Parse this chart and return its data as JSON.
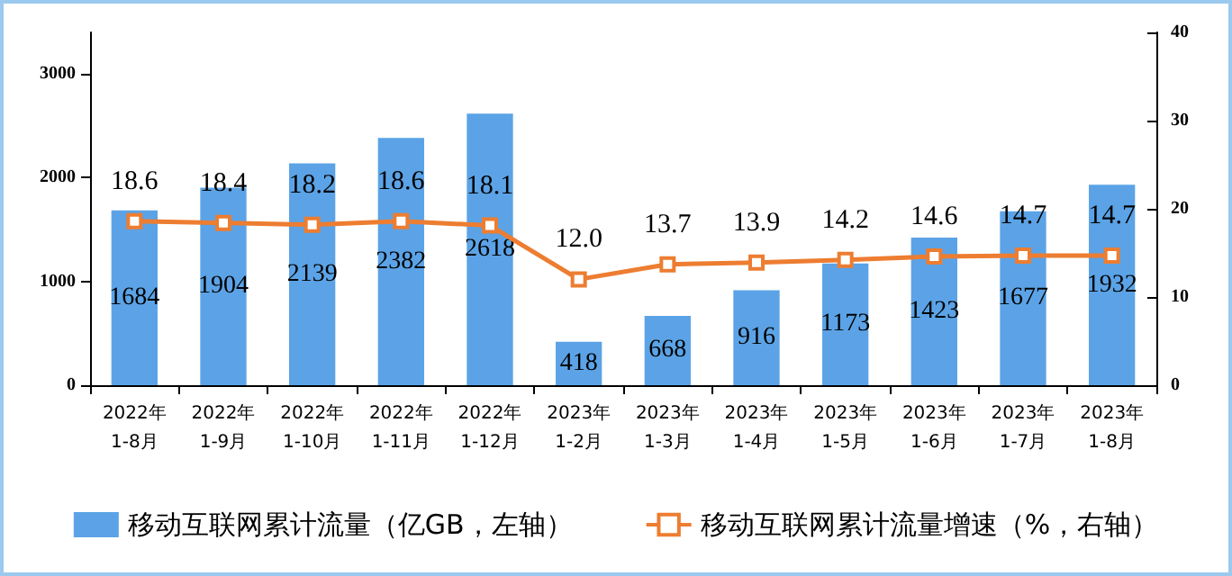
{
  "chart_data": {
    "type": "bar",
    "categories": [
      "2022年\n1-8月",
      "2022年\n1-9月",
      "2022年\n1-10月",
      "2022年\n1-11月",
      "2022年\n1-12月",
      "2023年\n1-2月",
      "2023年\n1-3月",
      "2023年\n1-4月",
      "2023年\n1-5月",
      "2023年\n1-6月",
      "2023年\n1-7月",
      "2023年\n1-8月"
    ],
    "series": [
      {
        "name": "移动互联网累计流量（亿GB，左轴）",
        "color": "#5ba3e6",
        "values": [
          1684,
          1904,
          2139,
          2382,
          2618,
          418,
          668,
          916,
          1173,
          1423,
          1677,
          1932
        ]
      },
      {
        "name": "移动互联网累计流量增速（%，右轴）",
        "type": "line",
        "axis": "y2",
        "color": "#ed7d31",
        "marker": "square",
        "values": [
          18.6,
          18.4,
          18.2,
          18.6,
          18.1,
          12.0,
          13.7,
          13.9,
          14.2,
          14.6,
          14.7,
          14.7
        ],
        "value_labels": [
          "18.6",
          "18.4",
          "18.2",
          "18.6",
          "18.1",
          "12.0",
          "13.7",
          "13.9",
          "14.2",
          "14.6",
          "14.7",
          "14.7"
        ]
      }
    ],
    "ylim": [
      0,
      3400
    ],
    "yticks": [
      0,
      1000,
      2000,
      3000
    ],
    "y2lim": [
      0,
      40
    ],
    "y2ticks": [
      0,
      10,
      20,
      30,
      40
    ],
    "data_labels": true,
    "grid": false,
    "legend": "bottom"
  }
}
